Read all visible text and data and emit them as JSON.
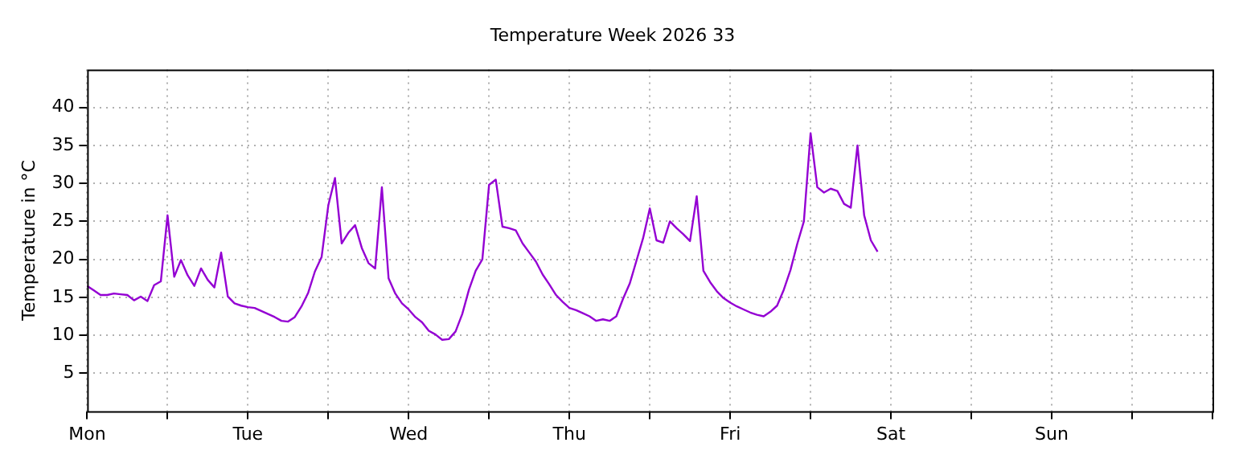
{
  "chart_data": {
    "type": "line",
    "title": "Temperature Week 2026 33",
    "ylabel": "Temperature in °C",
    "categories": [
      "Mon",
      null,
      null,
      null,
      null,
      null,
      null,
      null,
      null,
      null,
      null,
      null,
      null,
      null,
      null,
      null,
      null,
      null,
      null,
      null,
      null,
      null,
      null,
      null,
      "Tue",
      null,
      null,
      null,
      null,
      null,
      null,
      null,
      null,
      null,
      null,
      null,
      null,
      null,
      null,
      null,
      null,
      null,
      null,
      null,
      null,
      null,
      null,
      null,
      "Wed",
      null,
      null,
      null,
      null,
      null,
      null,
      null,
      null,
      null,
      null,
      null,
      null,
      null,
      null,
      null,
      null,
      null,
      null,
      null,
      null,
      null,
      null,
      null,
      "Thu",
      null,
      null,
      null,
      null,
      null,
      null,
      null,
      null,
      null,
      null,
      null,
      null,
      null,
      null,
      null,
      null,
      null,
      null,
      null,
      null,
      null,
      null,
      null,
      "Fri",
      null,
      null,
      null,
      null,
      null,
      null,
      null,
      null,
      null,
      null,
      null,
      null,
      null,
      null,
      null,
      null,
      null,
      null,
      null,
      null,
      null,
      null,
      null,
      "Sat",
      null,
      null,
      null,
      null,
      null,
      null,
      null,
      null,
      null,
      null,
      null,
      null,
      null,
      null,
      null,
      null,
      null,
      null,
      null,
      null,
      null,
      null,
      null,
      "Sun",
      null,
      null,
      null,
      null,
      null,
      null,
      null,
      null,
      null,
      null,
      null,
      null,
      null,
      null,
      null,
      null,
      null,
      null,
      null,
      null,
      null,
      null,
      null,
      null
    ],
    "series": [
      {
        "color": "#9400d3",
        "values": [
          16.5,
          15.9,
          15.3,
          15.3,
          15.5,
          15.4,
          15.3,
          14.6,
          15.1,
          14.5,
          16.6,
          17.1,
          25.8,
          17.7,
          19.9,
          17.9,
          16.5,
          18.8,
          17.3,
          16.3,
          20.9,
          15.1,
          14.2,
          13.9,
          13.7,
          13.6,
          13.2,
          12.8,
          12.4,
          11.9,
          11.8,
          12.4,
          13.8,
          15.6,
          18.4,
          20.3,
          27.1,
          30.7,
          22.1,
          23.5,
          24.5,
          21.5,
          19.5,
          18.8,
          29.5,
          17.5,
          15.5,
          14.2,
          13.4,
          12.4,
          11.7,
          10.6,
          10.1,
          9.4,
          9.5,
          10.5,
          12.8,
          16.0,
          18.5,
          20.0,
          29.8,
          30.5,
          24.3,
          24.1,
          23.8,
          22.1,
          20.9,
          19.7,
          18.0,
          16.7,
          15.3,
          14.4,
          13.6,
          13.3,
          12.9,
          12.5,
          11.9,
          12.1,
          11.9,
          12.5,
          14.8,
          16.8,
          19.8,
          22.8,
          26.7,
          22.5,
          22.2,
          25.0,
          24.1,
          23.3,
          22.4,
          28.3,
          18.5,
          17.0,
          15.8,
          14.9,
          14.3,
          13.8,
          13.4,
          13.0,
          12.7,
          12.5,
          13.1,
          13.9,
          16.0,
          18.6,
          22.0,
          25.0,
          36.6,
          29.5,
          28.8,
          29.3,
          29.0,
          27.3,
          26.8,
          35.0,
          25.8,
          22.5,
          21.0,
          null,
          null,
          null,
          null,
          null,
          null,
          null,
          null,
          null,
          null,
          null,
          null,
          null,
          null,
          null,
          null,
          null,
          null,
          null,
          null,
          null,
          null,
          null,
          null,
          null,
          null,
          null,
          null,
          null,
          null,
          null,
          null,
          null,
          null,
          null,
          null,
          null,
          null,
          null,
          null,
          null,
          null,
          null,
          null,
          null,
          null,
          null,
          null,
          null,
          null
        ]
      }
    ],
    "ylim": [
      0,
      45
    ],
    "yticks": [
      5,
      10,
      15,
      20,
      25,
      30,
      35,
      40
    ],
    "grid": true,
    "legend": false,
    "marker": "none",
    "line_style": "solid"
  }
}
